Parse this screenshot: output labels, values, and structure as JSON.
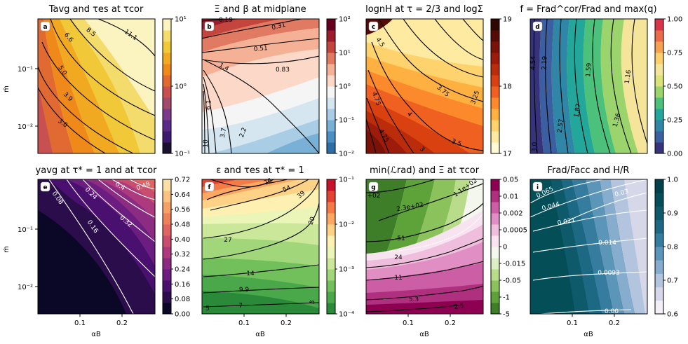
{
  "figure": {
    "shared_xlabel": "αB",
    "shared_ylabel": "ṁ",
    "x_ticks": [
      "0.1",
      "0.2"
    ],
    "y_ticks": [
      "10⁻¹",
      "10⁻²"
    ]
  },
  "chart_data": [
    {
      "type": "heatmap",
      "letter": "a",
      "title": "Tavg and τes at τcor",
      "colors": [
        "#1a1030",
        "#3c1b6e",
        "#5a2a88",
        "#7c3a8a",
        "#a24a6a",
        "#c85050",
        "#e06a32",
        "#ef8a1a",
        "#f2a922",
        "#f0c838",
        "#f4dc6c",
        "#fbf3c0"
      ],
      "cbar_ticks": [
        "10¹",
        "10⁰",
        "10⁻¹"
      ],
      "contours": [
        {
          "label": "11.1"
        },
        {
          "label": "8.5"
        },
        {
          "label": "6.6"
        },
        {
          "label": "5.0"
        },
        {
          "label": "3.9"
        },
        {
          "label": "3.0"
        }
      ]
    },
    {
      "type": "heatmap",
      "letter": "b",
      "title": "Ξ and β at midplane",
      "colors": [
        "#2d6da8",
        "#4a8fc4",
        "#79b1d6",
        "#a9cde5",
        "#d5e6f1",
        "#f5f5f5",
        "#fbd8c8",
        "#f5b196",
        "#e07a62",
        "#c4453d",
        "#9e1b2e",
        "#67001f"
      ],
      "cbar_ticks": [
        "10²",
        "10¹",
        "10⁰",
        "10⁻¹",
        "10⁻²"
      ],
      "contours": [
        {
          "label": "0.19"
        },
        {
          "label": "0.31"
        },
        {
          "label": "0.51"
        },
        {
          "label": "0.83"
        },
        {
          "label": "1.4"
        },
        {
          "label": "2.2"
        },
        {
          "label": "3.7"
        },
        {
          "label": "6.1"
        },
        {
          "label": "10"
        }
      ]
    },
    {
      "type": "heatmap",
      "letter": "c",
      "title": "lognH at τ = 2/3 and logΣ",
      "colors": [
        "#fffbd4",
        "#feeaa0",
        "#fed26c",
        "#feb140",
        "#fc8a2c",
        "#f06020",
        "#d94210",
        "#bb2c0a",
        "#9c1b0a",
        "#7a1208",
        "#560c06",
        "#2e0702"
      ],
      "cbar_ticks": [
        "19",
        "18",
        "17"
      ],
      "contours": [
        {
          "label": "4.5"
        },
        {
          "label": "4.75"
        },
        {
          "label": "4"
        },
        {
          "label": "3.75"
        },
        {
          "label": "3.5"
        },
        {
          "label": "3.25"
        },
        {
          "label": "3"
        },
        {
          "label": "4.25"
        }
      ]
    },
    {
      "type": "heatmap",
      "letter": "d",
      "title": "f = Frad^cor/Frad and max(q)",
      "colors": [
        "#36337a",
        "#3b5fa0",
        "#2f86a6",
        "#22a79a",
        "#4cc17c",
        "#9bd36c",
        "#d9e37a",
        "#f5e59a",
        "#fbcf6e",
        "#f6a052",
        "#ea6c4a",
        "#d8354a"
      ],
      "cbar_ticks": [
        "1.00",
        "0.75",
        "0.50",
        "0.25",
        "0.00"
      ],
      "contours": [
        {
          "label": "4.54"
        },
        {
          "label": "2.19"
        },
        {
          "label": "2.57"
        },
        {
          "label": "1.87"
        },
        {
          "label": "1.59"
        },
        {
          "label": "1.36"
        },
        {
          "label": "1.16"
        },
        {
          "label": "3.0"
        }
      ]
    },
    {
      "type": "heatmap",
      "letter": "e",
      "title": "yavg at τ* = 1 and at τcor",
      "colors": [
        "#0b0726",
        "#2a0d4a",
        "#4a1070",
        "#6c1d80",
        "#8c2b82",
        "#ad3a7c",
        "#c94d6e",
        "#df6462",
        "#ec815c",
        "#f4a066",
        "#f9c182",
        "#fcdfa4"
      ],
      "cbar_ticks": [
        "0.72",
        "0.64",
        "0.56",
        "0.48",
        "0.40",
        "0.32",
        "0.24",
        "0.16",
        "0.08",
        "0.00"
      ],
      "contours": [
        {
          "label": "0.08"
        },
        {
          "label": "0.16"
        },
        {
          "label": "0.24"
        },
        {
          "label": "0.32"
        },
        {
          "label": "0.4"
        },
        {
          "label": "0.48"
        }
      ]
    },
    {
      "type": "heatmap",
      "letter": "f",
      "title": "ε and τes at τ* = 1",
      "colors": [
        "#2b8a3a",
        "#4aa84a",
        "#72c05c",
        "#a2d67a",
        "#cbe89a",
        "#ecf5b8",
        "#fdf0b0",
        "#fdd186",
        "#fca862",
        "#f47a48",
        "#e54332",
        "#c8112a"
      ],
      "cbar_ticks": [
        "10⁻¹",
        "10⁻²",
        "10⁻³",
        "10⁻⁴"
      ],
      "contours": [
        {
          "label": "76"
        },
        {
          "label": "54"
        },
        {
          "label": "39"
        },
        {
          "label": "27"
        },
        {
          "label": "20"
        },
        {
          "label": "14"
        },
        {
          "label": "9.9"
        },
        {
          "label": "7"
        },
        {
          "label": "5"
        },
        {
          "label": "5"
        }
      ]
    },
    {
      "type": "heatmap",
      "letter": "g",
      "title": "min(ℒrad) and Ξ at τcor",
      "colors": [
        "#3e7e28",
        "#5ea23a",
        "#8cc25c",
        "#b8dc8a",
        "#dcefc4",
        "#f4f7ee",
        "#f8e4f0",
        "#f0bedd",
        "#e08ec4",
        "#cc5ea6",
        "#b03080",
        "#8e0152"
      ],
      "cbar_ticks": [
        "0.05",
        "0.01",
        "0.002",
        "0.0005",
        "0",
        "-0.015",
        "-0.05",
        "-1",
        "-5"
      ],
      "contours": [
        {
          "label": "1.1e+02"
        },
        {
          "label": "2.3e+02"
        },
        {
          "label": "+02"
        },
        {
          "label": "51"
        },
        {
          "label": "24"
        },
        {
          "label": "11"
        },
        {
          "label": "5.3"
        },
        {
          "label": "2.5"
        }
      ]
    },
    {
      "type": "heatmap",
      "letter": "i",
      "title": "Frad/Facc and H/R",
      "colors": [
        "#f3eff6",
        "#d6d8ea",
        "#b3c5de",
        "#86adcd",
        "#5b95b8",
        "#357c9e",
        "#1d6882",
        "#0e5a6a",
        "#044e58",
        "#01424a"
      ],
      "cbar_ticks": [
        "1.0",
        "0.9",
        "0.8",
        "0.7",
        "0.6"
      ],
      "contours": [
        {
          "label": "0.065"
        },
        {
          "label": "0.044"
        },
        {
          "label": "0.03"
        },
        {
          "label": "0.021"
        },
        {
          "label": "0.014"
        },
        {
          "label": "0.0093"
        },
        {
          "label": "0.00"
        }
      ]
    }
  ]
}
